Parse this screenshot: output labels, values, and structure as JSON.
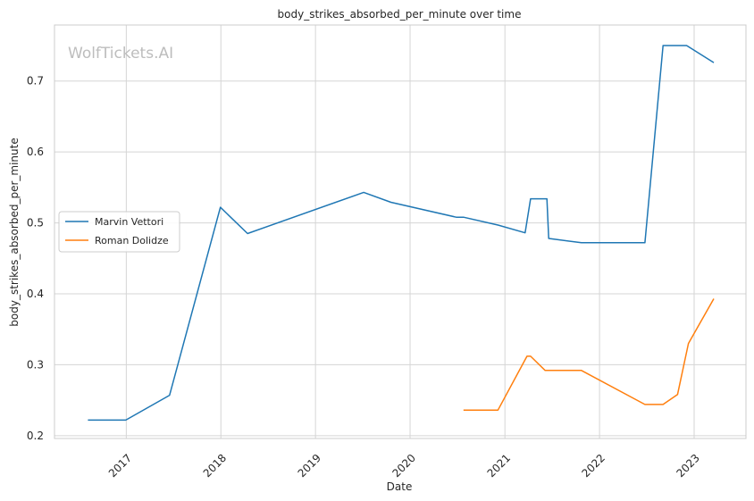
{
  "chart_data": {
    "type": "line",
    "title": "body_strikes_absorbed_per_minute over time",
    "xlabel": "Date",
    "ylabel": "body_strikes_absorbed_per_minute",
    "watermark": "WolfTickets.AI",
    "xlim": [
      "2016-03-30",
      "2023-07-20"
    ],
    "ylim": [
      0.196,
      0.779
    ],
    "x_ticks": [
      "2017-01-01",
      "2018-01-01",
      "2019-01-01",
      "2020-01-01",
      "2021-01-01",
      "2022-01-01",
      "2023-01-01"
    ],
    "x_tick_labels": [
      "2017",
      "2018",
      "2019",
      "2020",
      "2021",
      "2022",
      "2023"
    ],
    "y_ticks": [
      0.2,
      0.3,
      0.4,
      0.5,
      0.6,
      0.7
    ],
    "y_tick_labels": [
      "0.2",
      "0.3",
      "0.4",
      "0.5",
      "0.6",
      "0.7"
    ],
    "grid": true,
    "legend_position": "center-left",
    "series": [
      {
        "name": "Marvin Vettori",
        "color": "#1f77b4",
        "points": [
          {
            "x": "2016-08-06",
            "y": 0.222
          },
          {
            "x": "2016-12-30",
            "y": 0.222
          },
          {
            "x": "2017-06-17",
            "y": 0.257
          },
          {
            "x": "2017-12-30",
            "y": 0.522
          },
          {
            "x": "2018-04-14",
            "y": 0.485
          },
          {
            "x": "2019-07-06",
            "y": 0.543
          },
          {
            "x": "2019-10-19",
            "y": 0.529
          },
          {
            "x": "2020-06-27",
            "y": 0.508
          },
          {
            "x": "2020-07-25",
            "y": 0.508
          },
          {
            "x": "2020-12-05",
            "y": 0.497
          },
          {
            "x": "2021-03-20",
            "y": 0.486
          },
          {
            "x": "2021-04-10",
            "y": 0.534
          },
          {
            "x": "2021-06-12",
            "y": 0.534
          },
          {
            "x": "2021-06-19",
            "y": 0.478
          },
          {
            "x": "2021-10-23",
            "y": 0.472
          },
          {
            "x": "2022-06-25",
            "y": 0.472
          },
          {
            "x": "2022-09-03",
            "y": 0.75
          },
          {
            "x": "2022-12-03",
            "y": 0.75
          },
          {
            "x": "2023-03-18",
            "y": 0.726
          }
        ]
      },
      {
        "name": "Roman Dolidze",
        "color": "#ff7f0e",
        "points": [
          {
            "x": "2020-07-25",
            "y": 0.236
          },
          {
            "x": "2020-12-05",
            "y": 0.236
          },
          {
            "x": "2021-03-27",
            "y": 0.312
          },
          {
            "x": "2021-04-10",
            "y": 0.312
          },
          {
            "x": "2021-06-05",
            "y": 0.292
          },
          {
            "x": "2021-10-23",
            "y": 0.292
          },
          {
            "x": "2022-06-25",
            "y": 0.244
          },
          {
            "x": "2022-09-03",
            "y": 0.244
          },
          {
            "x": "2022-10-29",
            "y": 0.258
          },
          {
            "x": "2022-12-10",
            "y": 0.33
          },
          {
            "x": "2023-03-18",
            "y": 0.393
          }
        ]
      }
    ]
  }
}
